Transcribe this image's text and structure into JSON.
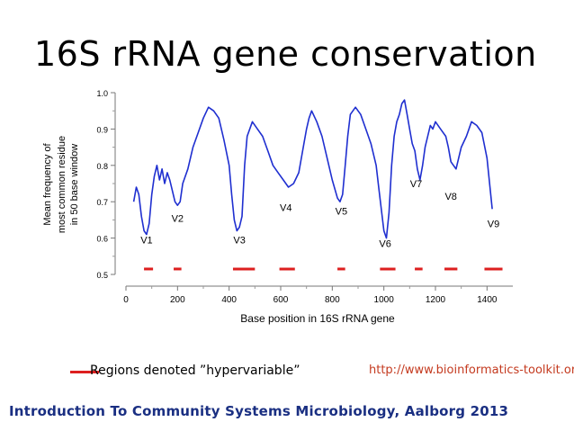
{
  "slide": {
    "title": "16S rRNA gene conservation",
    "legend_label": "Regions denoted ”hypervariable”",
    "source": "http://www.bioinformatics-toolkit.org",
    "footer": "Introduction To Community Systems Microbiology, Aalborg 2013"
  },
  "chart_data": {
    "type": "line",
    "title": "",
    "xlabel": "Base position in 16S rRNA gene",
    "ylabel": "Mean frequency of most common residue in 50 base window",
    "ylabel_lines": [
      "Mean frequency of",
      "most common residue",
      "in 50 base window"
    ],
    "xlim": [
      0,
      1500
    ],
    "ylim": [
      0.5,
      1.0
    ],
    "xticks": [
      0,
      200,
      400,
      600,
      800,
      1000,
      1200,
      1400
    ],
    "yticks": [
      0.5,
      0.6,
      0.7,
      0.8,
      0.9,
      1.0
    ],
    "ytick_labels": [
      "0.5",
      "0.6",
      "0.7",
      "0.8",
      "0.9",
      "1.0"
    ],
    "line_color": "#1f2fd0",
    "region_color": "#dd1f1f",
    "series": [
      {
        "name": "Mean frequency",
        "x": [
          30,
          40,
          50,
          60,
          70,
          80,
          90,
          100,
          110,
          120,
          130,
          140,
          150,
          160,
          170,
          180,
          190,
          200,
          210,
          220,
          240,
          260,
          280,
          300,
          320,
          340,
          360,
          380,
          400,
          410,
          420,
          430,
          440,
          450,
          460,
          470,
          490,
          510,
          530,
          550,
          570,
          590,
          610,
          630,
          650,
          670,
          690,
          700,
          710,
          720,
          740,
          760,
          780,
          800,
          820,
          830,
          840,
          850,
          860,
          870,
          890,
          910,
          930,
          950,
          970,
          980,
          990,
          1000,
          1010,
          1020,
          1030,
          1040,
          1050,
          1060,
          1070,
          1080,
          1090,
          1100,
          1110,
          1120,
          1130,
          1140,
          1150,
          1160,
          1170,
          1180,
          1190,
          1200,
          1220,
          1240,
          1250,
          1260,
          1280,
          1300,
          1320,
          1340,
          1360,
          1380,
          1400,
          1410,
          1420
        ],
        "values": [
          0.7,
          0.74,
          0.72,
          0.66,
          0.62,
          0.61,
          0.64,
          0.72,
          0.77,
          0.8,
          0.76,
          0.79,
          0.75,
          0.78,
          0.76,
          0.73,
          0.7,
          0.69,
          0.7,
          0.75,
          0.79,
          0.85,
          0.89,
          0.93,
          0.96,
          0.95,
          0.93,
          0.87,
          0.8,
          0.72,
          0.65,
          0.62,
          0.63,
          0.66,
          0.8,
          0.88,
          0.92,
          0.9,
          0.88,
          0.84,
          0.8,
          0.78,
          0.76,
          0.74,
          0.75,
          0.78,
          0.86,
          0.9,
          0.93,
          0.95,
          0.92,
          0.88,
          0.82,
          0.76,
          0.71,
          0.7,
          0.72,
          0.8,
          0.88,
          0.94,
          0.96,
          0.94,
          0.9,
          0.86,
          0.8,
          0.74,
          0.68,
          0.62,
          0.6,
          0.67,
          0.8,
          0.88,
          0.92,
          0.94,
          0.97,
          0.98,
          0.94,
          0.9,
          0.86,
          0.84,
          0.79,
          0.76,
          0.8,
          0.85,
          0.88,
          0.91,
          0.9,
          0.92,
          0.9,
          0.88,
          0.85,
          0.81,
          0.79,
          0.85,
          0.88,
          0.92,
          0.91,
          0.89,
          0.82,
          0.75,
          0.68
        ]
      }
    ],
    "regions": [
      {
        "label": "V1",
        "x_start": 70,
        "x_end": 105,
        "label_x": 80,
        "label_y": 0.585
      },
      {
        "label": "V2",
        "x_start": 185,
        "x_end": 215,
        "label_x": 200,
        "label_y": 0.645
      },
      {
        "label": "V3",
        "x_start": 415,
        "x_end": 500,
        "label_x": 440,
        "label_y": 0.585
      },
      {
        "label": "V4",
        "x_start": 595,
        "x_end": 655,
        "label_x": 620,
        "label_y": 0.675
      },
      {
        "label": "V5",
        "x_start": 820,
        "x_end": 850,
        "label_x": 835,
        "label_y": 0.665
      },
      {
        "label": "V6",
        "x_start": 985,
        "x_end": 1045,
        "label_x": 1005,
        "label_y": 0.575
      },
      {
        "label": "V7",
        "x_start": 1120,
        "x_end": 1150,
        "label_x": 1125,
        "label_y": 0.74
      },
      {
        "label": "V8",
        "x_start": 1235,
        "x_end": 1285,
        "label_x": 1260,
        "label_y": 0.705
      },
      {
        "label": "V9",
        "x_start": 1390,
        "x_end": 1460,
        "label_x": 1425,
        "label_y": 0.63
      }
    ]
  }
}
